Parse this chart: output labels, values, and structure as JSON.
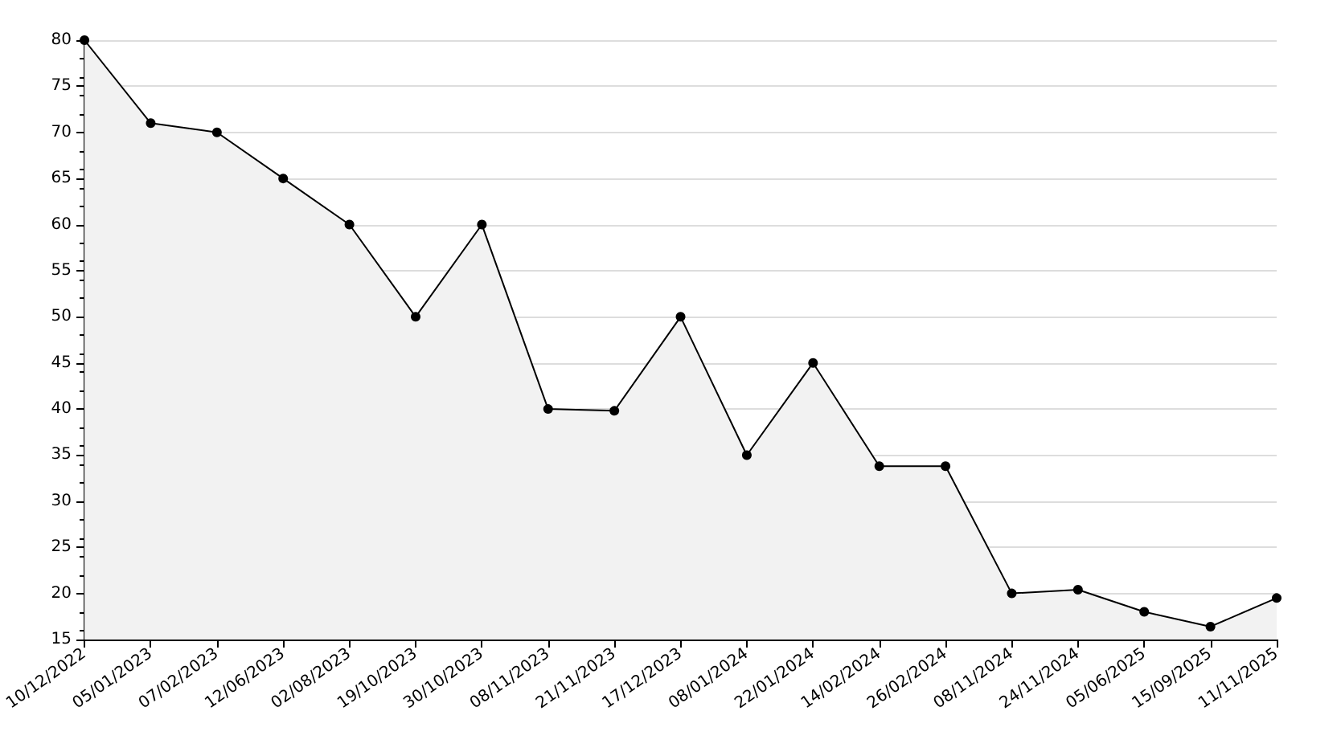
{
  "chart_data": {
    "type": "area",
    "categories": [
      "10/12/2022",
      "05/01/2023",
      "07/02/2023",
      "12/06/2023",
      "02/08/2023",
      "19/10/2023",
      "30/10/2023",
      "08/11/2023",
      "21/11/2023",
      "17/12/2023",
      "08/01/2024",
      "22/01/2024",
      "14/02/2024",
      "26/02/2024",
      "08/11/2024",
      "24/11/2024",
      "05/06/2025",
      "15/09/2025",
      "11/11/2025"
    ],
    "series": [
      {
        "color": "#000000",
        "values": [
          80,
          71,
          70,
          65,
          60,
          50,
          60,
          40,
          39.8,
          50,
          35,
          45,
          33.8,
          33.8,
          20,
          20.4,
          18,
          16.4,
          19.5
        ]
      }
    ],
    "ylim": [
      15,
      80
    ],
    "yticks": [
      15,
      20,
      25,
      30,
      35,
      40,
      45,
      50,
      55,
      60,
      65,
      70,
      75,
      80
    ],
    "grid": "y",
    "marker": "circle",
    "line_style": "solid"
  }
}
